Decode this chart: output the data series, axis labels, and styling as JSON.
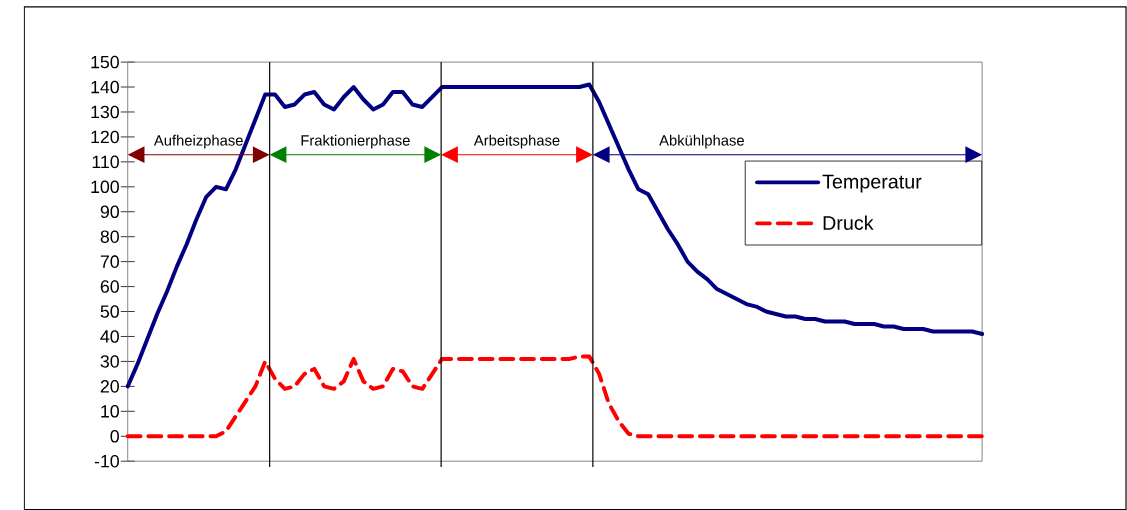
{
  "chart_data": {
    "type": "line",
    "categories": [
      null,
      null,
      null,
      null,
      null,
      null,
      null,
      null,
      null,
      null,
      null,
      null,
      null,
      null,
      null,
      null,
      null,
      null,
      null,
      null,
      null,
      null,
      null,
      null,
      null,
      null,
      null,
      null,
      null,
      null,
      null,
      null,
      null,
      null,
      null,
      null,
      null,
      null,
      null,
      null,
      null,
      null,
      null,
      null,
      null,
      null,
      null,
      null,
      null,
      null,
      null,
      null,
      null,
      null,
      null,
      null,
      null,
      null,
      null,
      null,
      null,
      null,
      null,
      null,
      null,
      null,
      null,
      null,
      null,
      null,
      null,
      null,
      null,
      null,
      null,
      null,
      null,
      null,
      null,
      null,
      null,
      null,
      null,
      null,
      null,
      null,
      null,
      null
    ],
    "series": [
      {
        "name": "Temperatur",
        "color": "#000080",
        "line_style": "solid",
        "values": [
          20,
          29,
          39,
          49,
          58,
          68,
          77,
          87,
          96,
          100,
          99,
          107,
          117,
          127,
          137,
          137,
          132,
          133,
          137,
          138,
          133,
          131,
          136,
          140,
          135,
          131,
          133,
          138,
          138,
          133,
          132,
          136,
          140,
          140,
          140,
          140,
          140,
          140,
          140,
          140,
          140,
          140,
          140,
          140,
          140,
          140,
          140,
          141,
          134,
          125,
          116,
          107,
          99,
          97,
          90,
          83,
          77,
          70,
          66,
          63,
          59,
          57,
          55,
          53,
          52,
          50,
          49,
          48,
          48,
          47,
          47,
          46,
          46,
          46,
          45,
          45,
          45,
          44,
          44,
          43,
          43,
          43,
          42,
          42,
          42,
          42,
          42,
          41
        ]
      },
      {
        "name": "Druck",
        "color": "#ff0000",
        "line_style": "dashed",
        "values": [
          0,
          0,
          0,
          0,
          0,
          0,
          0,
          0,
          0,
          0,
          2,
          8,
          14,
          20,
          30,
          23,
          19,
          20,
          25,
          27,
          20,
          19,
          22,
          31,
          22,
          19,
          20,
          27,
          26,
          20,
          19,
          25,
          31,
          31,
          31,
          31,
          31,
          31,
          31,
          31,
          31,
          31,
          31,
          31,
          31,
          31,
          32,
          32,
          25,
          13,
          6,
          1,
          0,
          0,
          0,
          0,
          0,
          0,
          0,
          0,
          0,
          0,
          0,
          0,
          0,
          0,
          0,
          0,
          0,
          0,
          0,
          0,
          0,
          0,
          0,
          0,
          0,
          0,
          0,
          0,
          0,
          0,
          0,
          0,
          0,
          0,
          0,
          0
        ]
      }
    ],
    "ylim": [
      -10,
      150
    ],
    "yticks": [
      -10,
      0,
      10,
      20,
      30,
      40,
      50,
      60,
      70,
      80,
      90,
      100,
      110,
      120,
      130,
      140,
      150
    ],
    "tick_labels": "y",
    "grid": false,
    "legend": "right",
    "marker": "none",
    "annotations": [
      "Aufheizphase",
      "Fraktionierphase",
      "Arbeitsphase",
      "Abkühlphase"
    ]
  }
}
